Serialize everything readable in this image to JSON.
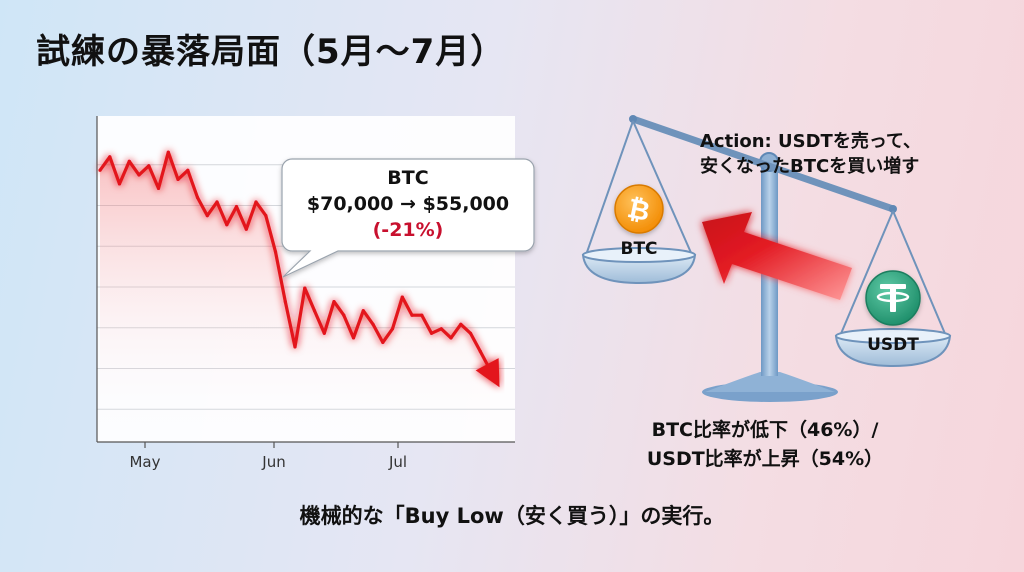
{
  "title": "試練の暴落局面（5月〜7月）",
  "chart_data": {
    "type": "line",
    "x_ticks": [
      "May",
      "Jun",
      "Jul"
    ],
    "series": [
      {
        "values": [
          70000,
          71500,
          68500,
          71000,
          69500,
          70500,
          68000,
          72000,
          69000,
          70000,
          67000,
          65000,
          66500,
          64000,
          66000,
          63500,
          66500,
          65000,
          61000,
          55500,
          50500,
          57000,
          54500,
          52000,
          55500,
          54000,
          51500,
          54500,
          53000,
          51000,
          52500,
          56000,
          54000,
          54000,
          52000,
          52500,
          51500,
          53000,
          52000,
          50000,
          48000
        ]
      }
    ],
    "grid": true,
    "color": "#e3141c"
  },
  "callout": {
    "asset": "BTC",
    "price_change": "$70,000 → $55,000",
    "percent": "(-21%)"
  },
  "scale": {
    "action_line1": "Action: USDTを売って、",
    "action_line2": "安くなったBTCを買い増す",
    "left_pan_label": "BTC",
    "right_pan_label": "USDT",
    "btc_color": "#f7931a",
    "usdt_color": "#26a17b"
  },
  "ratio": {
    "line1": "BTC比率が低下（46%）/",
    "line2": "USDT比率が上昇（54%）"
  },
  "footer": "機械的な「Buy Low（安く買う）」の実行。"
}
